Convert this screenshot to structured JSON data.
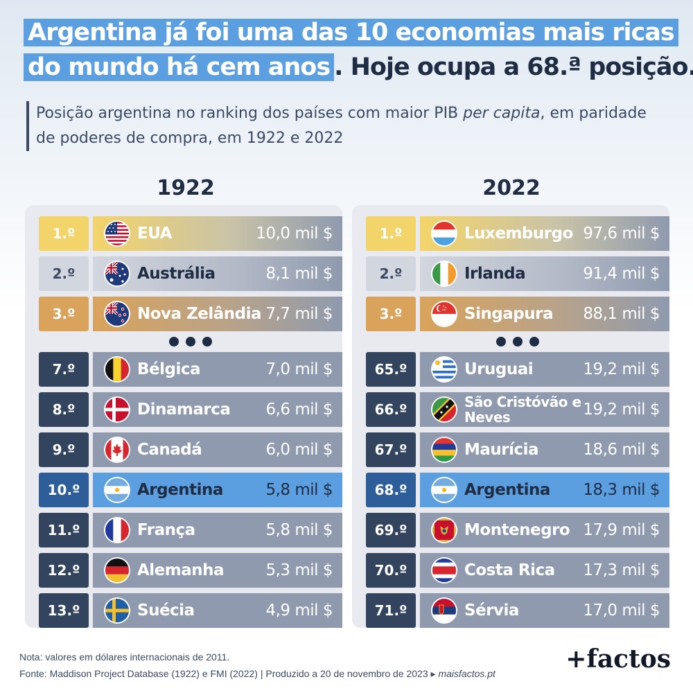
{
  "headline": {
    "highlight_line1": "Argentina já foi uma das 10 economias mais ricas",
    "highlight_line2": "do mundo há cem anos",
    "plain": ". Hoje ocupa a 68.ª posição."
  },
  "subtitle": {
    "part1": "Posição argentina no ranking dos países com maior PIB ",
    "italic": "per capita",
    "part2": ", em paridade de poderes de compra, em 1922 e 2022"
  },
  "colors": {
    "gold": "#f3d46a",
    "silver": "#d2d6de",
    "bronze": "#d9a35b",
    "rank_dark": "#33445e",
    "bar_gray": "#8f9aae",
    "argentina": "#5b9fe0",
    "argentina_rank": "#2e5e9a"
  },
  "chart_data": [
    {
      "type": "table",
      "title": "1922",
      "value_unit": "mil $",
      "rows": [
        {
          "rank": "1.º",
          "country": "EUA",
          "value": "10,0 mil $",
          "flag": "usa-flag-icon",
          "style": "gold"
        },
        {
          "rank": "2.º",
          "country": "Austrália",
          "value": "8,1 mil $",
          "flag": "australia-flag-icon",
          "style": "silver"
        },
        {
          "rank": "3.º",
          "country": "Nova Zelândia",
          "value": "7,7 mil $",
          "flag": "new-zealand-flag-icon",
          "style": "bronze"
        },
        {
          "rank": "7.º",
          "country": "Bélgica",
          "value": "7,0 mil $",
          "flag": "belgium-flag-icon",
          "style": "normal"
        },
        {
          "rank": "8.º",
          "country": "Dinamarca",
          "value": "6,6 mil $",
          "flag": "denmark-flag-icon",
          "style": "normal"
        },
        {
          "rank": "9.º",
          "country": "Canadá",
          "value": "6,0 mil $",
          "flag": "canada-flag-icon",
          "style": "normal"
        },
        {
          "rank": "10.º",
          "country": "Argentina",
          "value": "5,8 mil $",
          "flag": "argentina-flag-icon",
          "style": "highlight"
        },
        {
          "rank": "11.º",
          "country": "França",
          "value": "5,8 mil $",
          "flag": "france-flag-icon",
          "style": "normal"
        },
        {
          "rank": "12.º",
          "country": "Alemanha",
          "value": "5,3 mil $",
          "flag": "germany-flag-icon",
          "style": "normal"
        },
        {
          "rank": "13.º",
          "country": "Suécia",
          "value": "4,9 mil $",
          "flag": "sweden-flag-icon",
          "style": "normal"
        }
      ]
    },
    {
      "type": "table",
      "title": "2022",
      "value_unit": "mil $",
      "rows": [
        {
          "rank": "1.º",
          "country": "Luxemburgo",
          "value": "97,6 mil $",
          "flag": "luxembourg-flag-icon",
          "style": "gold"
        },
        {
          "rank": "2.º",
          "country": "Irlanda",
          "value": "91,4 mil $",
          "flag": "ireland-flag-icon",
          "style": "silver"
        },
        {
          "rank": "3.º",
          "country": "Singapura",
          "value": "88,1 mil $",
          "flag": "singapore-flag-icon",
          "style": "bronze"
        },
        {
          "rank": "65.º",
          "country": "Uruguai",
          "value": "19,2 mil $",
          "flag": "uruguay-flag-icon",
          "style": "normal"
        },
        {
          "rank": "66.º",
          "country": "São Cristóvão e Neves",
          "value": "19,2 mil $",
          "flag": "saint-kitts-flag-icon",
          "style": "normal"
        },
        {
          "rank": "67.º",
          "country": "Maurícia",
          "value": "18,6 mil $",
          "flag": "mauritius-flag-icon",
          "style": "normal"
        },
        {
          "rank": "68.º",
          "country": "Argentina",
          "value": "18,3 mil $",
          "flag": "argentina-flag-icon",
          "style": "highlight"
        },
        {
          "rank": "69.º",
          "country": "Montenegro",
          "value": "17,9 mil $",
          "flag": "montenegro-flag-icon",
          "style": "normal"
        },
        {
          "rank": "70.º",
          "country": "Costa Rica",
          "value": "17,3 mil $",
          "flag": "costa-rica-flag-icon",
          "style": "normal"
        },
        {
          "rank": "71.º",
          "country": "Sérvia",
          "value": "17,0 mil $",
          "flag": "serbia-flag-icon",
          "style": "normal"
        }
      ]
    }
  ],
  "footer": {
    "note": "Nota: valores em dólares internacionais de 2011.",
    "source": "Fonte: Maddison Project Database (1922) e FMI (2022) | Produzido a 20 de novembro de 2023 ▸ ",
    "site": "maisfactos.pt"
  },
  "brand": "+factos"
}
